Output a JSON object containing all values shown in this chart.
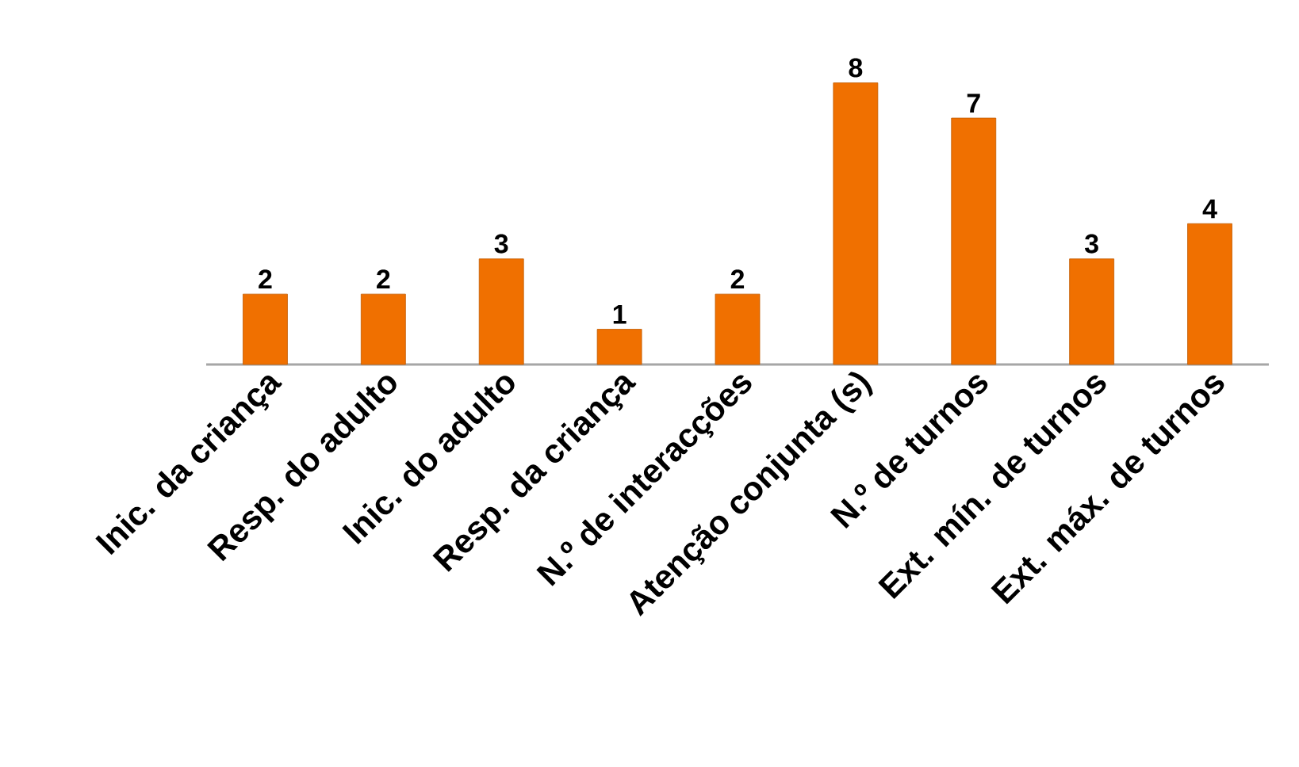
{
  "chart_data": {
    "type": "bar",
    "categories": [
      "Inic. da criança",
      "Resp. do adulto",
      "Inic. do adulto",
      "Resp. da criança",
      "N.º de interacções",
      "Atenção conjunta (s)",
      "N.º de turnos",
      "Ext. mín. de turnos",
      "Ext. máx. de turnos"
    ],
    "values": [
      2,
      2,
      3,
      1,
      2,
      8,
      7,
      3,
      4
    ],
    "color": "#f07000",
    "data_labels": true
  }
}
